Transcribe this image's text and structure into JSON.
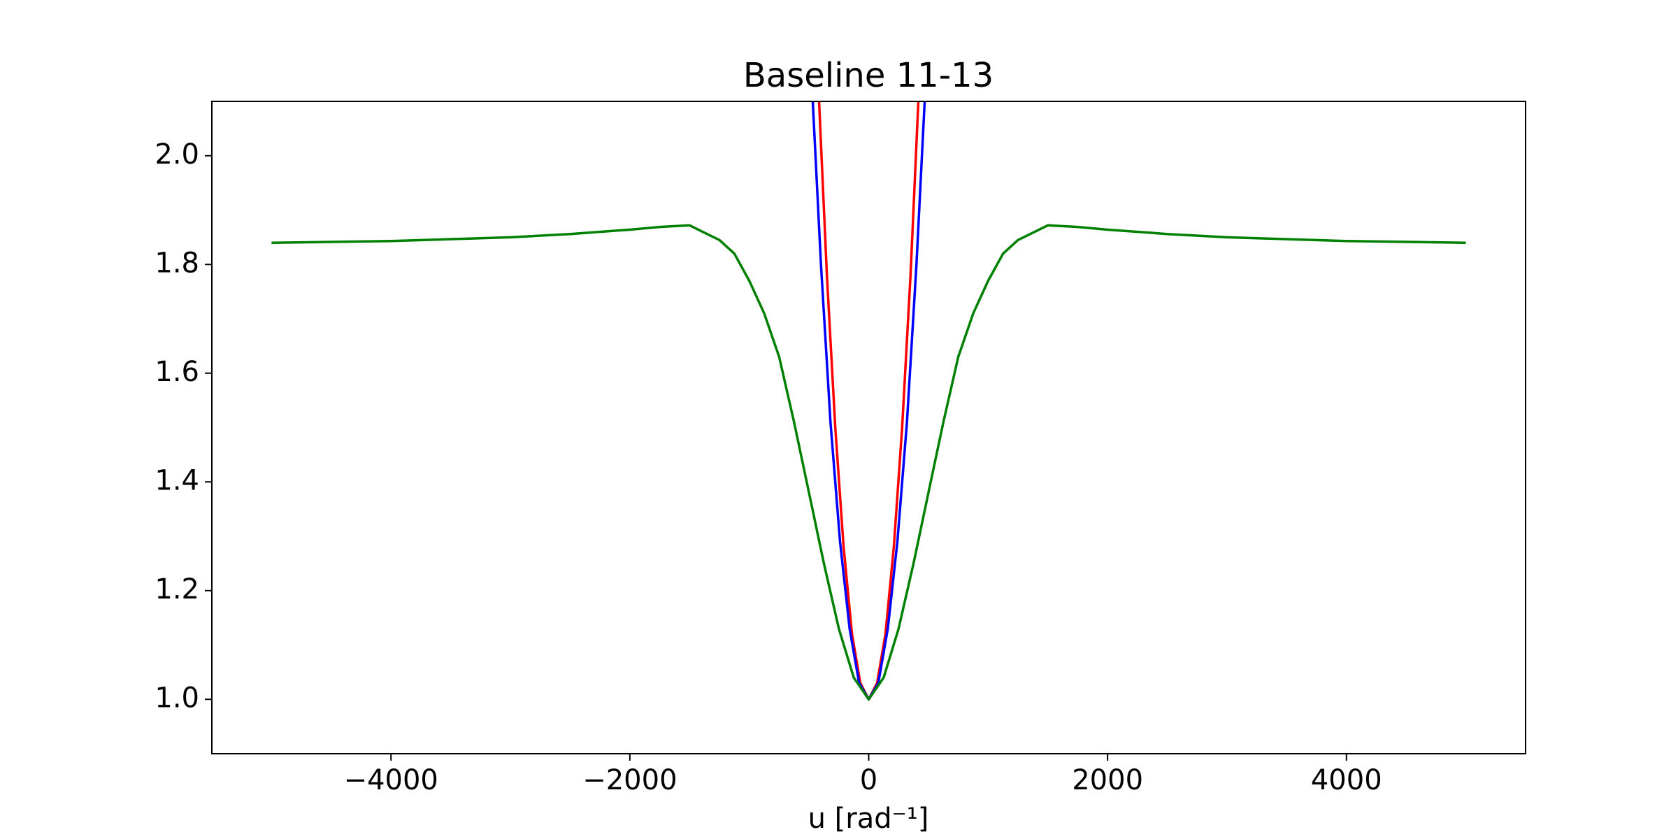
{
  "chart_data": {
    "type": "line",
    "title": "Baseline 11-13",
    "xlabel": "u [rad⁻¹]",
    "xlim": [
      -5500,
      5500
    ],
    "ylim": [
      0.9,
      2.1
    ],
    "xticks": [
      {
        "value": -4000,
        "label": "−4000"
      },
      {
        "value": -2000,
        "label": "−2000"
      },
      0,
      2000,
      4000
    ],
    "yticks": [
      {
        "value": 1.0,
        "label": "1.0"
      },
      1.2,
      1.4,
      1.6,
      1.8,
      {
        "value": 2.0,
        "label": "2.0"
      }
    ],
    "grid": false,
    "series": [
      {
        "color": "#ff0000",
        "x": [
          -420,
          -350,
          -280,
          -210,
          -140,
          -70,
          0,
          70,
          140,
          210,
          280,
          350,
          420
        ],
        "values": [
          2.12,
          1.78,
          1.5,
          1.28,
          1.12,
          1.03,
          1.0,
          1.03,
          1.12,
          1.28,
          1.5,
          1.78,
          2.12
        ]
      },
      {
        "color": "#0000ff",
        "x": [
          -480,
          -400,
          -320,
          -240,
          -160,
          -80,
          0,
          80,
          160,
          240,
          320,
          400,
          480
        ],
        "values": [
          2.15,
          1.8,
          1.51,
          1.29,
          1.13,
          1.03,
          1.0,
          1.03,
          1.13,
          1.29,
          1.51,
          1.8,
          2.15
        ]
      },
      {
        "color": "#008000",
        "x": [
          -5000,
          -4000,
          -3000,
          -2500,
          -2000,
          -1750,
          -1500,
          -1250,
          -1125,
          -1000,
          -875,
          -750,
          -625,
          -500,
          -375,
          -250,
          -125,
          0,
          125,
          250,
          375,
          500,
          625,
          750,
          875,
          1000,
          1125,
          1250,
          1500,
          1750,
          2000,
          2500,
          3000,
          4000,
          5000
        ],
        "values": [
          1.84,
          1.843,
          1.85,
          1.856,
          1.864,
          1.869,
          1.872,
          1.845,
          1.82,
          1.77,
          1.71,
          1.63,
          1.51,
          1.38,
          1.25,
          1.13,
          1.04,
          1.0,
          1.04,
          1.13,
          1.25,
          1.38,
          1.51,
          1.63,
          1.71,
          1.77,
          1.82,
          1.845,
          1.872,
          1.869,
          1.864,
          1.856,
          1.85,
          1.843,
          1.84
        ]
      }
    ]
  }
}
